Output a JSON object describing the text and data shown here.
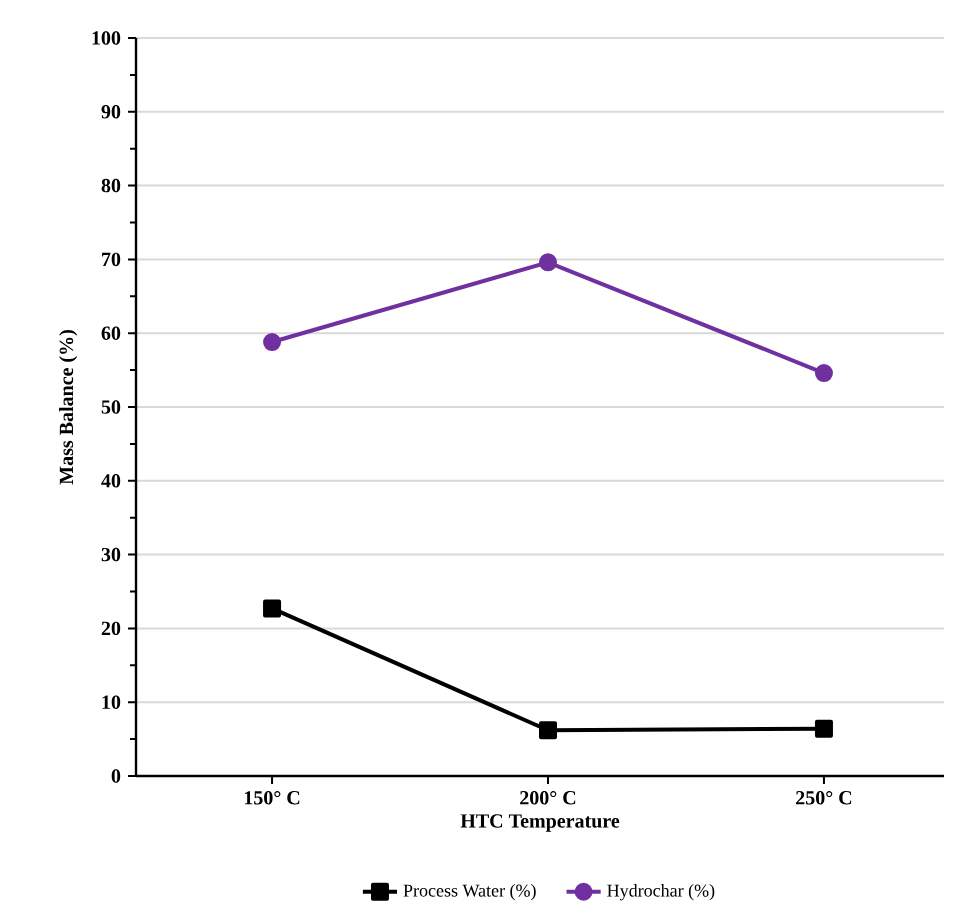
{
  "chart_data": {
    "type": "line",
    "xlabel": "HTC Temperature",
    "ylabel": "Mass Balance (%)",
    "categories": [
      "150° C",
      "200° C",
      "250° C"
    ],
    "series": [
      {
        "name": "Process Water (%)",
        "color": "#000000",
        "marker": "square",
        "values": [
          22.7,
          6.2,
          6.4
        ]
      },
      {
        "name": "Hydrochar (%)",
        "color": "#7030a0",
        "marker": "circle",
        "values": [
          58.8,
          69.6,
          54.6
        ]
      }
    ],
    "ylim": [
      0,
      100
    ],
    "yticks": [
      0,
      10,
      20,
      30,
      40,
      50,
      60,
      70,
      80,
      90,
      100
    ],
    "grid": "y",
    "legend": "bottom"
  }
}
